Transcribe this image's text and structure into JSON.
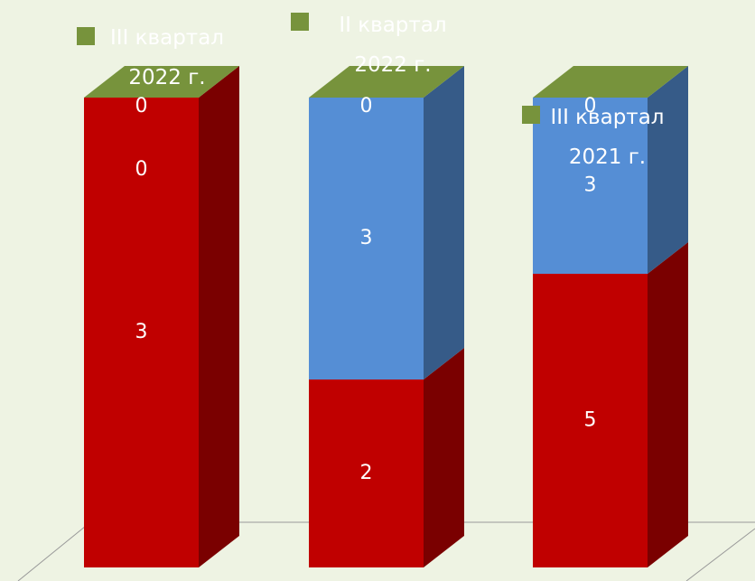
{
  "chart_data": {
    "type": "bar3d_stacked_percent",
    "series": [
      {
        "color": "#c00000",
        "side": "#7a0000",
        "values": [
          3,
          2,
          5
        ]
      },
      {
        "color": "#558ed5",
        "side": "#365b88",
        "values": [
          0,
          3,
          3
        ]
      },
      {
        "color": "#77933c",
        "side": "#4f6228",
        "values": [
          0,
          0,
          0
        ]
      }
    ],
    "legend": {
      "color": "#77933c",
      "labels": [
        "III квартал 2022 г.",
        "II квартал 2022 г.",
        "III квартал 2021 г."
      ]
    },
    "background": "#eef3e3"
  }
}
